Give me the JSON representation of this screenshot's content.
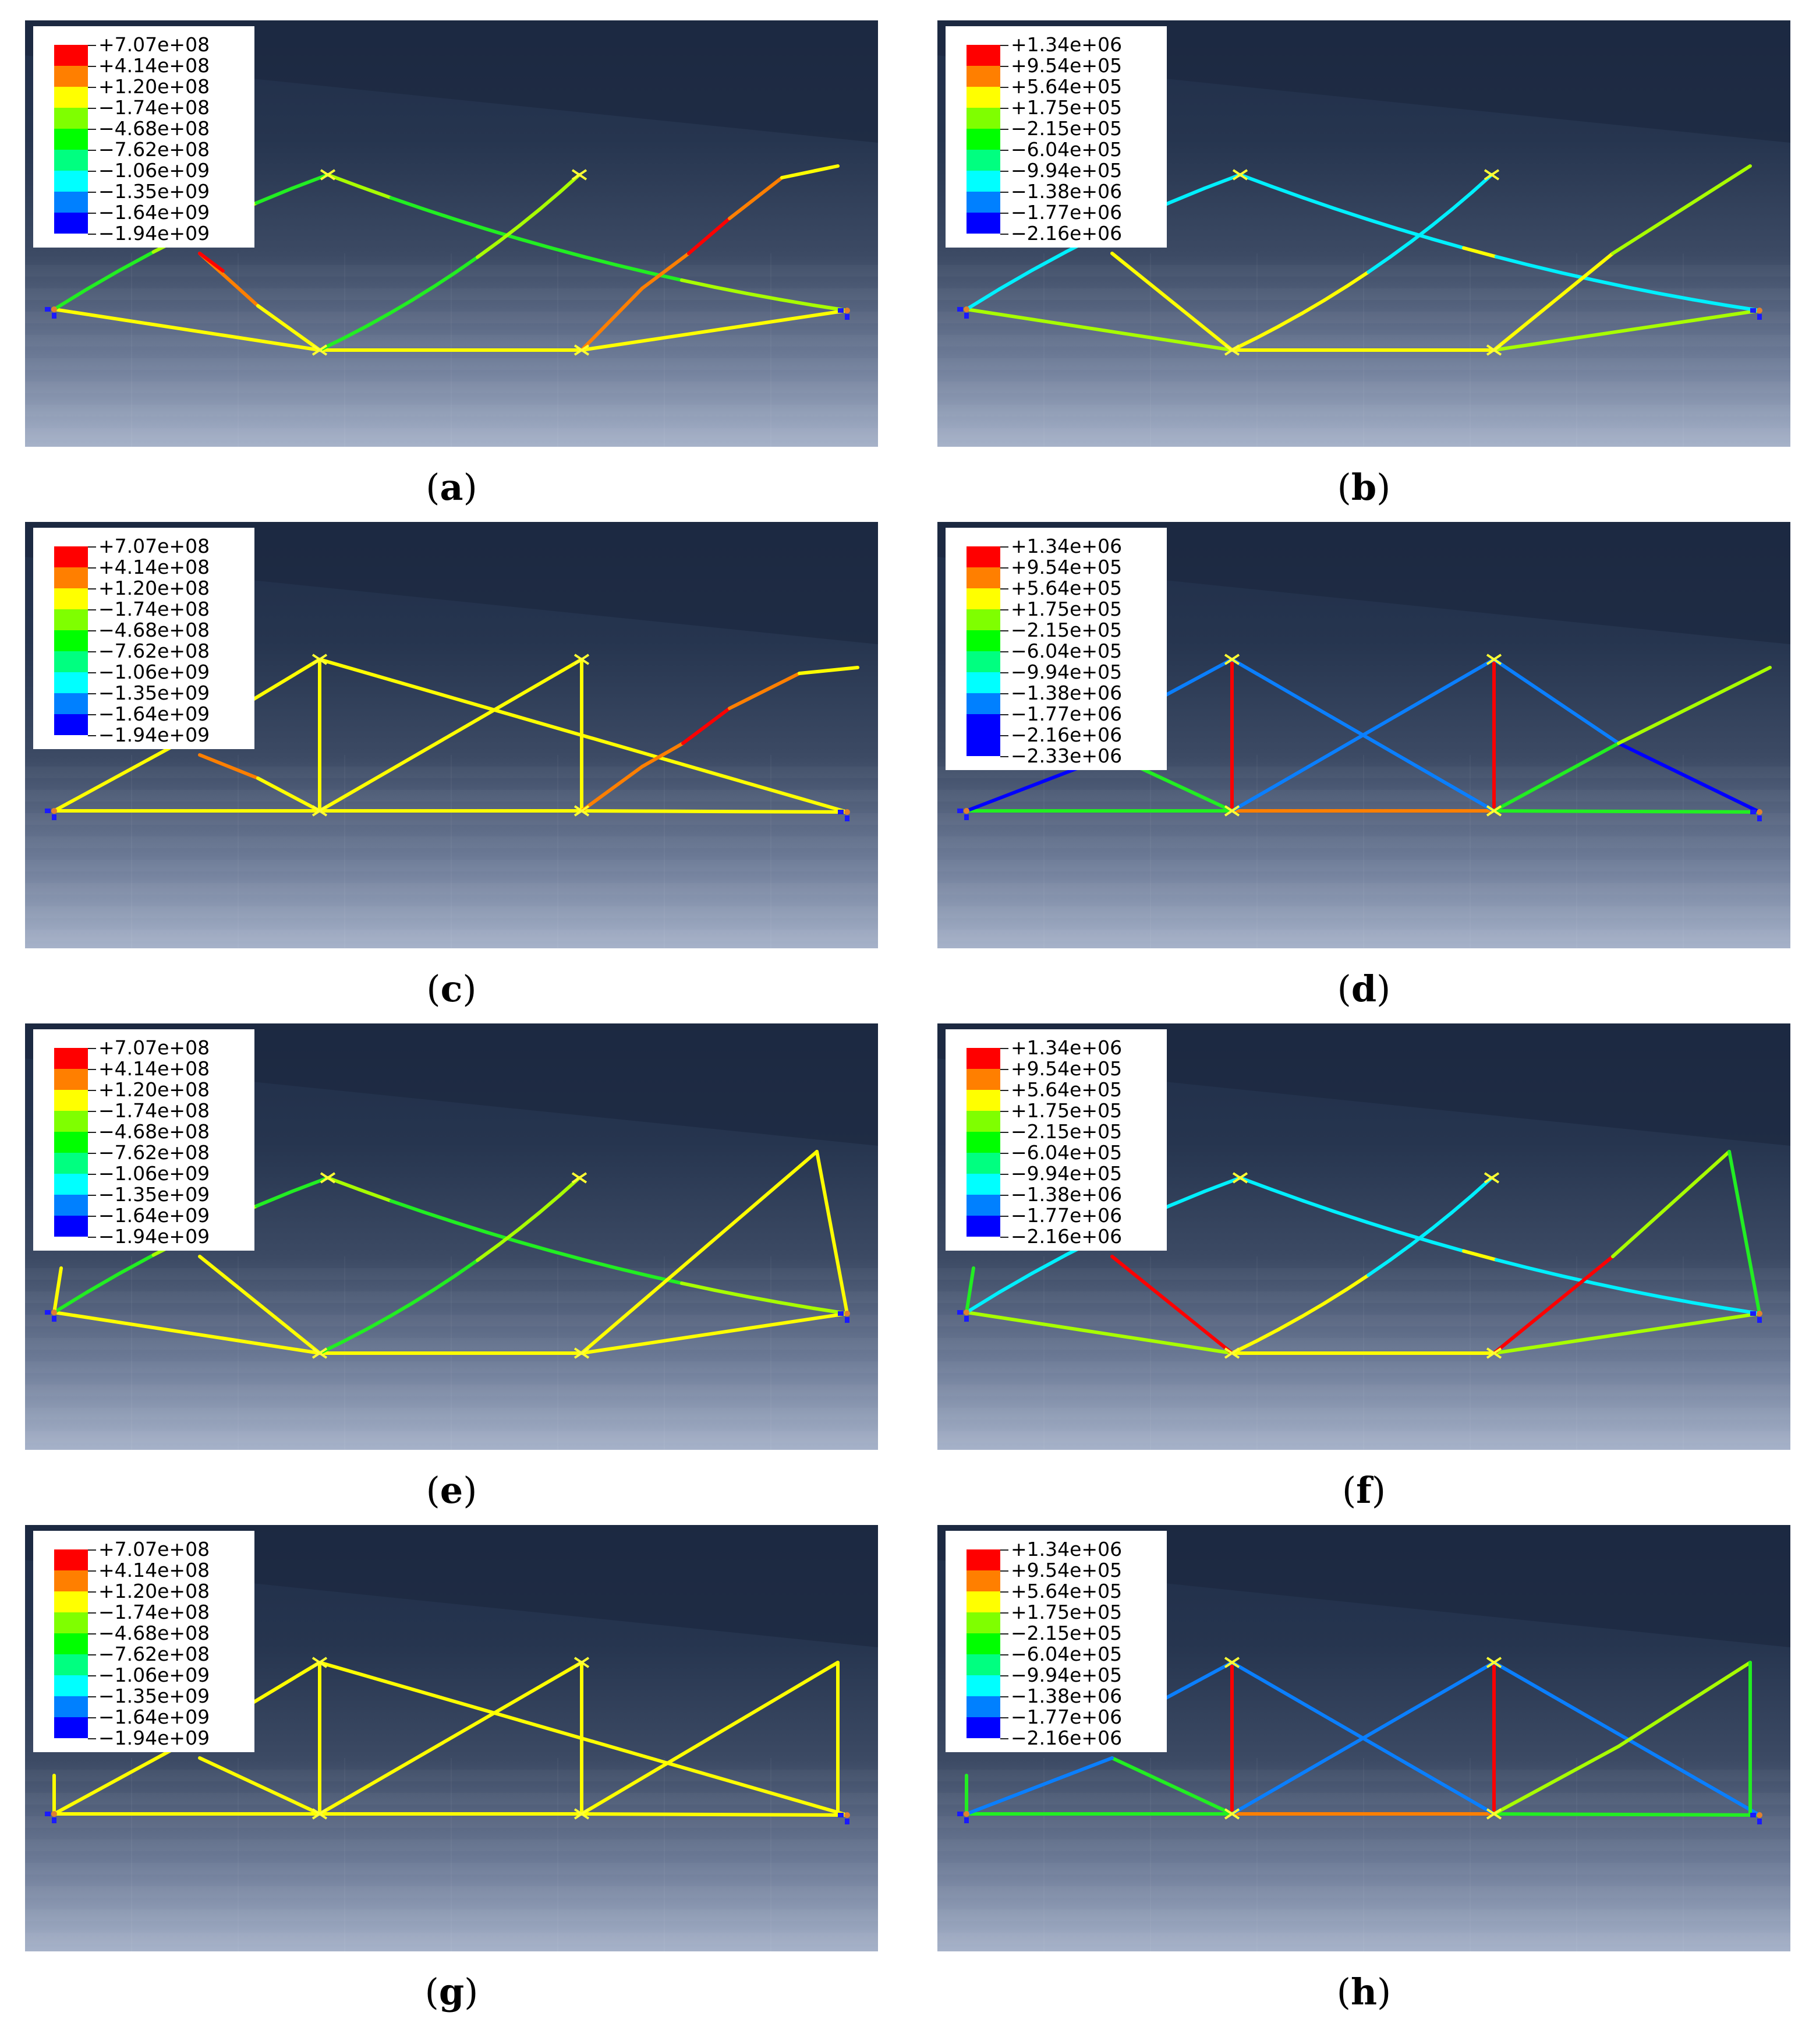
{
  "legends": {
    "stress": [
      "+7.07e+08",
      "+4.14e+08",
      "+1.20e+08",
      "−1.74e+08",
      "−4.68e+08",
      "−7.62e+08",
      "−1.06e+09",
      "−1.35e+09",
      "−1.64e+09",
      "−1.94e+09"
    ],
    "disp": [
      "+1.34e+06",
      "+9.54e+05",
      "+5.64e+05",
      "+1.75e+05",
      "−2.15e+05",
      "−6.04e+05",
      "−9.94e+05",
      "−1.38e+06",
      "−1.77e+06",
      "−2.16e+06"
    ],
    "disp_d": [
      "+1.34e+06",
      "+9.54e+05",
      "+5.64e+05",
      "+1.75e+05",
      "−2.15e+05",
      "−6.04e+05",
      "−9.94e+05",
      "−1.38e+06",
      "−1.77e+06",
      "−2.16e+06",
      "−2.33e+06"
    ]
  },
  "colors": {
    "scale": [
      "#ff0000",
      "#ff7f00",
      "#ffff00",
      "#7fff00",
      "#00ff00",
      "#00ff80",
      "#00ffff",
      "#0080ff",
      "#0000ff",
      "#0000ff"
    ],
    "scale11": [
      "#ff0000",
      "#ff7f00",
      "#ffff00",
      "#7fff00",
      "#00ff00",
      "#00ff80",
      "#00ffff",
      "#0080ff",
      "#0000ff",
      "#0000ff",
      "#0000ff"
    ]
  },
  "panels": [
    {
      "id": "a",
      "caption": "a",
      "legend": "stress"
    },
    {
      "id": "b",
      "caption": "b",
      "legend": "disp"
    },
    {
      "id": "c",
      "caption": "c",
      "legend": "stress"
    },
    {
      "id": "d",
      "caption": "d",
      "legend": "disp_d"
    },
    {
      "id": "e",
      "caption": "e",
      "legend": "stress"
    },
    {
      "id": "f",
      "caption": "f",
      "legend": "disp"
    },
    {
      "id": "g",
      "caption": "g",
      "legend": "stress"
    },
    {
      "id": "h",
      "caption": "h",
      "legend": "disp"
    }
  ]
}
